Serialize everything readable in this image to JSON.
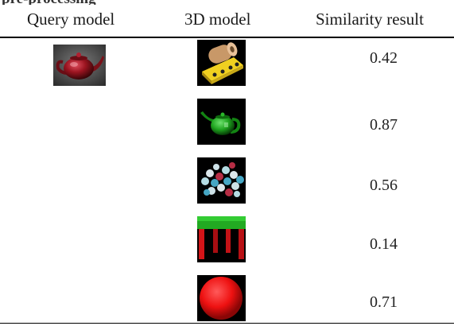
{
  "header_fragment": "pre-processing",
  "columns": {
    "query": "Query model",
    "model": "3D model",
    "result": "Similarity result"
  },
  "query_image": "red-teapot-render",
  "rows": [
    {
      "image": "tan-mechanical-part-render",
      "score": "0.42"
    },
    {
      "image": "green-teapot-render",
      "score": "0.87"
    },
    {
      "image": "molecule-render",
      "score": "0.56"
    },
    {
      "image": "red-table-render",
      "score": "0.14"
    },
    {
      "image": "red-sphere-render",
      "score": "0.71"
    }
  ],
  "colors": {
    "teapot_red": "#9b1420",
    "teapot_green": "#1fa41f",
    "table_red": "#d41418",
    "table_green": "#22aa22",
    "sphere_red": "#ee1111",
    "part_yellow": "#f0d020",
    "part_tan": "#c89868"
  }
}
